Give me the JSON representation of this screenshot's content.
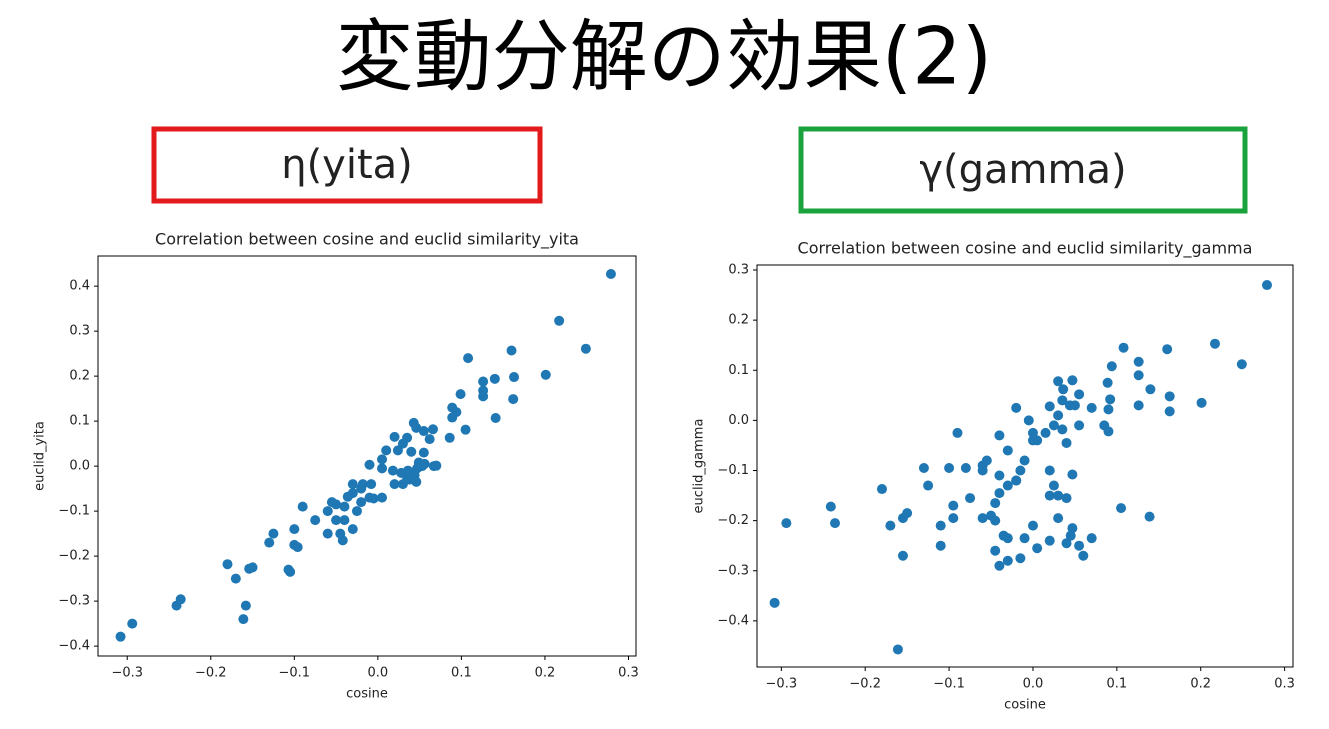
{
  "title": "変動分解の効果(2)",
  "labels": [
    {
      "text": "η(yita)",
      "color": "#e31a1c"
    },
    {
      "text": "γ(gamma)",
      "color": "#1aa33c"
    }
  ],
  "chart_data": [
    {
      "type": "scatter",
      "title": "Correlation between cosine and euclid similarity_yita",
      "xlabel": "cosine",
      "ylabel": "euclid_yita",
      "color": "#1f77b4",
      "xlim": [
        -0.335,
        0.309
      ],
      "ylim": [
        -0.422,
        0.467
      ],
      "xticks": [
        {
          "value": -0.3,
          "label": "−0.3"
        },
        {
          "value": -0.2,
          "label": "−0.2"
        },
        {
          "value": -0.1,
          "label": "−0.1"
        },
        {
          "value": 0,
          "label": "0.0"
        },
        0.1,
        0.2,
        0.3
      ],
      "yticks": [
        {
          "value": -0.4,
          "label": "−0.4"
        },
        {
          "value": -0.3,
          "label": "−0.3"
        },
        {
          "value": -0.2,
          "label": "−0.2"
        },
        {
          "value": -0.1,
          "label": "−0.1"
        },
        {
          "value": 0,
          "label": "0.0"
        },
        0.1,
        0.2,
        0.3,
        0.4
      ],
      "x": [
        0.279,
        0.217,
        0.249,
        0.108,
        0.16,
        0.201,
        0.163,
        0.14,
        0.126,
        0.126,
        0.126,
        0.162,
        0.141,
        0.099,
        0.089,
        0.094,
        0.089,
        0.105,
        0.086,
        0.066,
        0.055,
        0.043,
        0.046,
        0.035,
        0.03,
        0.02,
        0.024,
        0.04,
        0.055,
        0.067,
        0.049,
        0.056,
        0.047,
        0.036,
        0.028,
        0.044,
        0.038,
        0.046,
        0.03,
        0.02,
        0.018,
        0.005,
        0.005,
        -0.01,
        -0.008,
        -0.03,
        -0.02,
        -0.03,
        -0.01,
        -0.036,
        -0.02,
        -0.04,
        -0.025,
        -0.05,
        -0.06,
        -0.04,
        -0.03,
        -0.05,
        -0.045,
        -0.042,
        -0.06,
        -0.075,
        -0.055,
        -0.09,
        -0.1,
        -0.1,
        -0.096,
        -0.105,
        -0.107,
        -0.125,
        -0.13,
        -0.15,
        -0.154,
        -0.17,
        -0.18,
        -0.158,
        -0.161,
        -0.236,
        -0.241,
        -0.294,
        -0.308,
        0.01,
        0.062,
        0.07,
        0.053,
        0.035,
        -0.018,
        -0.005,
        0.005
      ],
      "values": [
        0.427,
        0.323,
        0.261,
        0.24,
        0.257,
        0.203,
        0.198,
        0.194,
        0.188,
        0.168,
        0.155,
        0.149,
        0.107,
        0.16,
        0.13,
        0.12,
        0.108,
        0.081,
        0.063,
        0.082,
        0.078,
        0.096,
        0.085,
        0.063,
        0.05,
        0.065,
        0.035,
        0.032,
        0.03,
        0.0,
        0.008,
        0.005,
        -0.005,
        -0.01,
        -0.015,
        -0.02,
        -0.03,
        -0.035,
        -0.04,
        -0.04,
        -0.01,
        -0.005,
        0.015,
        0.003,
        -0.04,
        -0.04,
        -0.05,
        -0.06,
        -0.07,
        -0.068,
        -0.08,
        -0.09,
        -0.1,
        -0.085,
        -0.1,
        -0.12,
        -0.14,
        -0.12,
        -0.15,
        -0.165,
        -0.15,
        -0.12,
        -0.08,
        -0.09,
        -0.14,
        -0.175,
        -0.18,
        -0.235,
        -0.23,
        -0.15,
        -0.17,
        -0.225,
        -0.228,
        -0.25,
        -0.218,
        -0.31,
        -0.34,
        -0.296,
        -0.31,
        -0.35,
        -0.379,
        0.035,
        0.06,
        0.001,
        0.0,
        -0.025,
        -0.04,
        -0.072,
        -0.07
      ]
    },
    {
      "type": "scatter",
      "title": "Correlation between cosine and euclid similarity_gamma",
      "xlabel": "cosine",
      "ylabel": "euclid_gamma",
      "color": "#1f77b4",
      "xlim": [
        -0.329,
        0.31
      ],
      "ylim": [
        -0.492,
        0.31
      ],
      "xticks": [
        {
          "value": -0.3,
          "label": "−0.3"
        },
        {
          "value": -0.2,
          "label": "−0.2"
        },
        {
          "value": -0.1,
          "label": "−0.1"
        },
        {
          "value": 0,
          "label": "0.0"
        },
        0.1,
        0.2,
        0.3
      ],
      "yticks": [
        {
          "value": -0.4,
          "label": "−0.4"
        },
        {
          "value": -0.3,
          "label": "−0.3"
        },
        {
          "value": -0.2,
          "label": "−0.2"
        },
        {
          "value": -0.1,
          "label": "−0.1"
        },
        {
          "value": 0,
          "label": "0.0"
        },
        0.1,
        0.2,
        0.3
      ],
      "x": [
        0.279,
        0.217,
        0.249,
        0.108,
        0.16,
        0.201,
        0.163,
        0.163,
        0.14,
        0.126,
        0.126,
        0.126,
        0.089,
        0.094,
        0.092,
        0.09,
        0.085,
        0.09,
        0.07,
        0.105,
        0.139,
        0.055,
        0.047,
        0.036,
        0.03,
        0.044,
        0.05,
        0.03,
        0.02,
        0.025,
        0.035,
        0.055,
        0.015,
        0.005,
        0.0,
        -0.005,
        -0.02,
        0.04,
        0.02,
        0.047,
        0.025,
        0.03,
        0.04,
        0.02,
        0.03,
        0.047,
        0.045,
        0.04,
        0.055,
        0.06,
        0.07,
        0.02,
        0.005,
        0.0,
        -0.01,
        -0.015,
        -0.03,
        -0.04,
        -0.045,
        -0.03,
        -0.035,
        -0.045,
        -0.045,
        -0.04,
        -0.02,
        -0.015,
        -0.01,
        -0.02,
        -0.03,
        -0.04,
        -0.06,
        -0.055,
        -0.06,
        -0.05,
        -0.06,
        -0.04,
        -0.03,
        -0.075,
        -0.08,
        -0.09,
        -0.1,
        -0.095,
        -0.095,
        -0.11,
        -0.11,
        -0.125,
        -0.13,
        -0.15,
        -0.155,
        -0.155,
        -0.17,
        -0.18,
        -0.161,
        -0.236,
        -0.241,
        -0.294,
        -0.308,
        0.0,
        0.035
      ],
      "values": [
        0.27,
        0.153,
        0.112,
        0.145,
        0.142,
        0.035,
        0.048,
        0.018,
        0.062,
        0.117,
        0.09,
        0.03,
        0.075,
        0.108,
        0.042,
        0.022,
        -0.01,
        -0.022,
        0.025,
        -0.175,
        -0.192,
        0.052,
        0.08,
        0.062,
        0.078,
        0.03,
        0.03,
        0.01,
        0.028,
        -0.01,
        -0.018,
        -0.01,
        -0.025,
        -0.04,
        -0.025,
        0.0,
        0.025,
        -0.045,
        -0.1,
        -0.108,
        -0.13,
        -0.15,
        -0.155,
        -0.15,
        -0.195,
        -0.215,
        -0.23,
        -0.245,
        -0.25,
        -0.27,
        -0.235,
        -0.24,
        -0.255,
        -0.21,
        -0.235,
        -0.275,
        -0.28,
        -0.29,
        -0.26,
        -0.235,
        -0.23,
        -0.2,
        -0.165,
        -0.145,
        -0.12,
        -0.1,
        -0.08,
        -0.12,
        -0.13,
        -0.11,
        -0.09,
        -0.08,
        -0.1,
        -0.19,
        -0.195,
        -0.03,
        -0.06,
        -0.155,
        -0.095,
        -0.025,
        -0.095,
        -0.17,
        -0.195,
        -0.21,
        -0.25,
        -0.13,
        -0.095,
        -0.185,
        -0.195,
        -0.27,
        -0.21,
        -0.137,
        -0.457,
        -0.205,
        -0.172,
        -0.205,
        -0.364,
        -0.04,
        0.04
      ]
    }
  ]
}
